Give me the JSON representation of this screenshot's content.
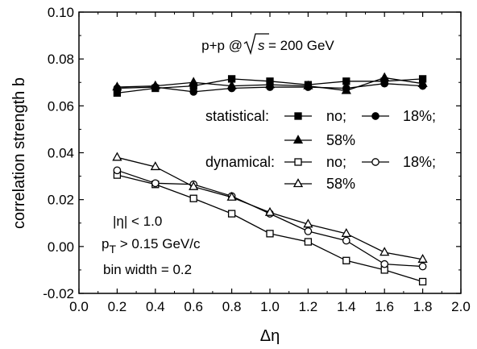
{
  "chart_data": {
    "type": "line",
    "title": "p+p @√s = 200 GeV",
    "title_parts": {
      "prefix": "p+p @",
      "sqrt_arg": "s",
      "suffix": " = 200 GeV"
    },
    "xlabel": "Δη",
    "ylabel": "correlation strength b",
    "xlim": [
      0.0,
      2.0
    ],
    "ylim": [
      -0.02,
      0.1
    ],
    "x_ticks": [
      "0.0",
      "0.2",
      "0.4",
      "0.6",
      "0.8",
      "1.0",
      "1.2",
      "1.4",
      "1.6",
      "1.8",
      "2.0"
    ],
    "y_ticks": [
      "-0.02",
      "0.00",
      "0.02",
      "0.04",
      "0.06",
      "0.08",
      "0.10"
    ],
    "grid": false,
    "legend_placement": "center-right",
    "x": [
      0.2,
      0.4,
      0.6,
      0.8,
      1.0,
      1.2,
      1.4,
      1.6,
      1.8
    ],
    "series": [
      {
        "name": "statistical: no",
        "marker": "square-filled",
        "values": [
          0.0655,
          0.0675,
          0.0685,
          0.0715,
          0.0705,
          0.069,
          0.0705,
          0.0705,
          0.0715
        ]
      },
      {
        "name": "statistical: 18%",
        "marker": "circle-filled",
        "values": [
          0.0675,
          0.068,
          0.066,
          0.0675,
          0.068,
          0.068,
          0.0675,
          0.0695,
          0.0685
        ]
      },
      {
        "name": "statistical: 58%",
        "marker": "triangle-filled",
        "values": [
          0.068,
          0.0685,
          0.07,
          0.0685,
          0.069,
          0.0685,
          0.0665,
          0.072,
          0.0695
        ]
      },
      {
        "name": "dynamical: no",
        "marker": "square-open",
        "values": [
          0.0305,
          0.0265,
          0.0205,
          0.014,
          0.0055,
          0.002,
          -0.006,
          -0.01,
          -0.015
        ]
      },
      {
        "name": "dynamical: 18%",
        "marker": "circle-open",
        "values": [
          0.0325,
          0.027,
          0.0265,
          0.0215,
          0.014,
          0.0065,
          0.0025,
          -0.0075,
          -0.0085
        ]
      },
      {
        "name": "dynamical: 58%",
        "marker": "triangle-open",
        "values": [
          0.038,
          0.034,
          0.0255,
          0.021,
          0.0145,
          0.0095,
          0.0055,
          -0.0025,
          -0.0055
        ]
      }
    ],
    "legend": {
      "group1_label": "statistical:",
      "group2_label": "dynamical:",
      "item_no": "no;",
      "item_18": "18%;",
      "item_58": "58%"
    },
    "annotations": {
      "eta_cut": "|η| < 1.0",
      "pt_prefix": "p",
      "pt_sub": "T",
      "pt_suffix": " > 0.15 GeV/c",
      "bin_width": "bin width = 0.2"
    }
  }
}
